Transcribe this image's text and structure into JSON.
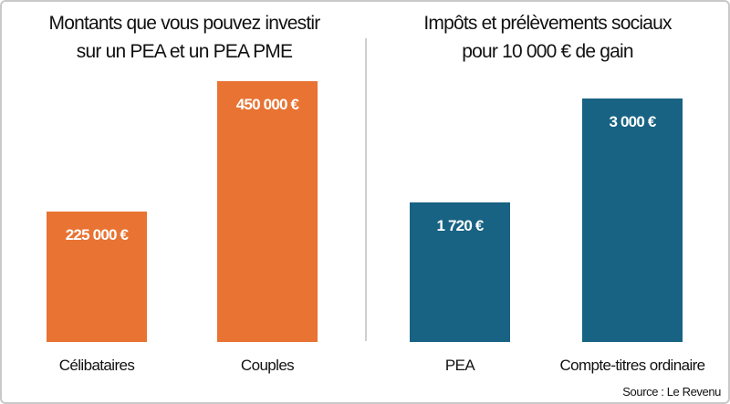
{
  "chart_data": [
    {
      "type": "bar",
      "title": [
        "Montants que vous pouvez investir",
        "sur un PEA et un PEA PME"
      ],
      "categories": [
        "Célibataires",
        "Couples"
      ],
      "values": [
        225000,
        450000
      ],
      "data_labels": [
        "225 000 €",
        "450 000 €"
      ],
      "color": "#E87333",
      "ylim": [
        0,
        450000
      ]
    },
    {
      "type": "bar",
      "title": [
        "Impôts et prélèvements sociaux",
        "pour 10 000 € de gain"
      ],
      "categories": [
        "PEA",
        "Compte-titres ordinaire"
      ],
      "values": [
        1720,
        3000
      ],
      "data_labels": [
        "1 720 €",
        "3 000 €"
      ],
      "color": "#186383",
      "ylim": [
        0,
        3000
      ]
    }
  ],
  "source": "Source : Le Revenu"
}
